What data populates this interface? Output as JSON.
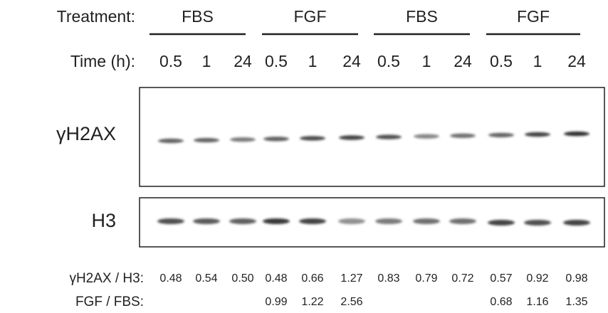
{
  "header": {
    "treatment_label": "Treatment:",
    "time_label": "Time (h):",
    "groups": [
      "FBS",
      "FGF",
      "FBS",
      "FGF"
    ],
    "times": [
      0.5,
      1,
      24,
      0.5,
      1,
      24,
      0.5,
      1,
      24,
      0.5,
      1,
      24
    ]
  },
  "blots": [
    {
      "label": "γH2AX"
    },
    {
      "label": "H3"
    }
  ],
  "rows": [
    {
      "label": "γH2AX / H3:",
      "values": [
        "0.48",
        "0.54",
        "0.50",
        "0.48",
        "0.66",
        "1.27",
        "0.83",
        "0.79",
        "0.72",
        "0.57",
        "0.92",
        "0.98"
      ]
    },
    {
      "label": "FGF / FBS:",
      "values": [
        null,
        null,
        null,
        "0.99",
        "1.22",
        "2.56",
        null,
        null,
        null,
        "0.68",
        "1.16",
        "1.35"
      ]
    }
  ]
}
